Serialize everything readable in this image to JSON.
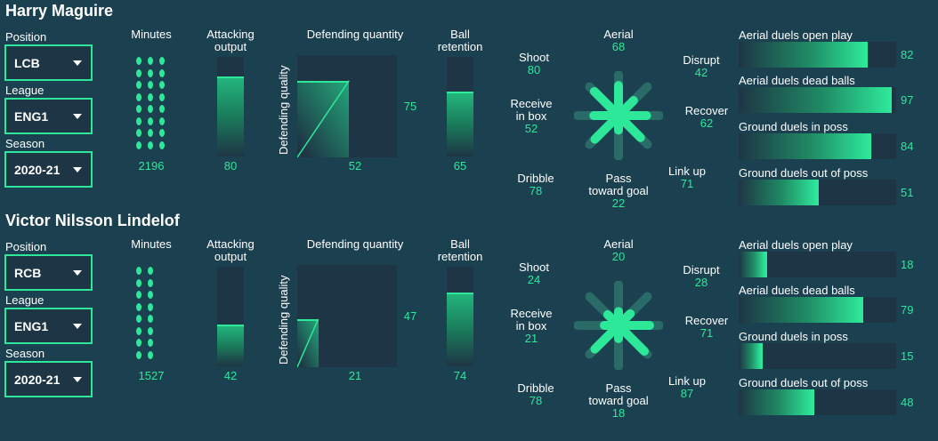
{
  "labels": {
    "position": "Position",
    "league": "League",
    "season": "Season",
    "minutes": "Minutes",
    "attacking_output_1": "Attacking",
    "attacking_output_2": "output",
    "defending_quantity": "Defending quantity",
    "defending_quality": "Defending quality",
    "ball_retention_1": "Ball",
    "ball_retention_2": "retention",
    "aerial": "Aerial",
    "shoot": "Shoot",
    "disrupt": "Disrupt",
    "receive_1": "Receive",
    "receive_2": "in box",
    "recover": "Recover",
    "dribble": "Dribble",
    "pass_1": "Pass",
    "pass_2": "toward goal",
    "link_up": "Link up",
    "aerial_open": "Aerial duels open play",
    "aerial_dead": "Aerial duels dead balls",
    "ground_in": "Ground duels in poss",
    "ground_out": "Ground duels out of poss"
  },
  "colors": {
    "accent": "#2ee89a",
    "background": "#1b4050",
    "panel": "#1e3545"
  },
  "icons": {
    "dropdown": "chevron-down-icon"
  },
  "players": [
    {
      "name": "Harry Maguire",
      "position": "LCB",
      "league": "ENG1",
      "season": "2020-21",
      "minutes": "2196",
      "minutes_dots": 24,
      "attacking_output": "80",
      "defending_quantity": "52",
      "defending_quality": "75",
      "ball_retention": "65",
      "radar": {
        "aerial": "68",
        "shoot": "80",
        "disrupt": "42",
        "receive": "52",
        "recover": "62",
        "dribble": "78",
        "pass": "22",
        "link_up": "71"
      },
      "duels": {
        "aerial_open": "82",
        "aerial_dead": "97",
        "ground_in": "84",
        "ground_out": "51"
      }
    },
    {
      "name": "Victor Nilsson Lindelof",
      "position": "RCB",
      "league": "ENG1",
      "season": "2020-21",
      "minutes": "1527",
      "minutes_dots": 16,
      "attacking_output": "42",
      "defending_quantity": "21",
      "defending_quality": "47",
      "ball_retention": "74",
      "radar": {
        "aerial": "20",
        "shoot": "24",
        "disrupt": "28",
        "receive": "21",
        "recover": "71",
        "dribble": "78",
        "pass": "18",
        "link_up": "87"
      },
      "duels": {
        "aerial_open": "18",
        "aerial_dead": "79",
        "ground_in": "15",
        "ground_out": "48"
      }
    }
  ]
}
